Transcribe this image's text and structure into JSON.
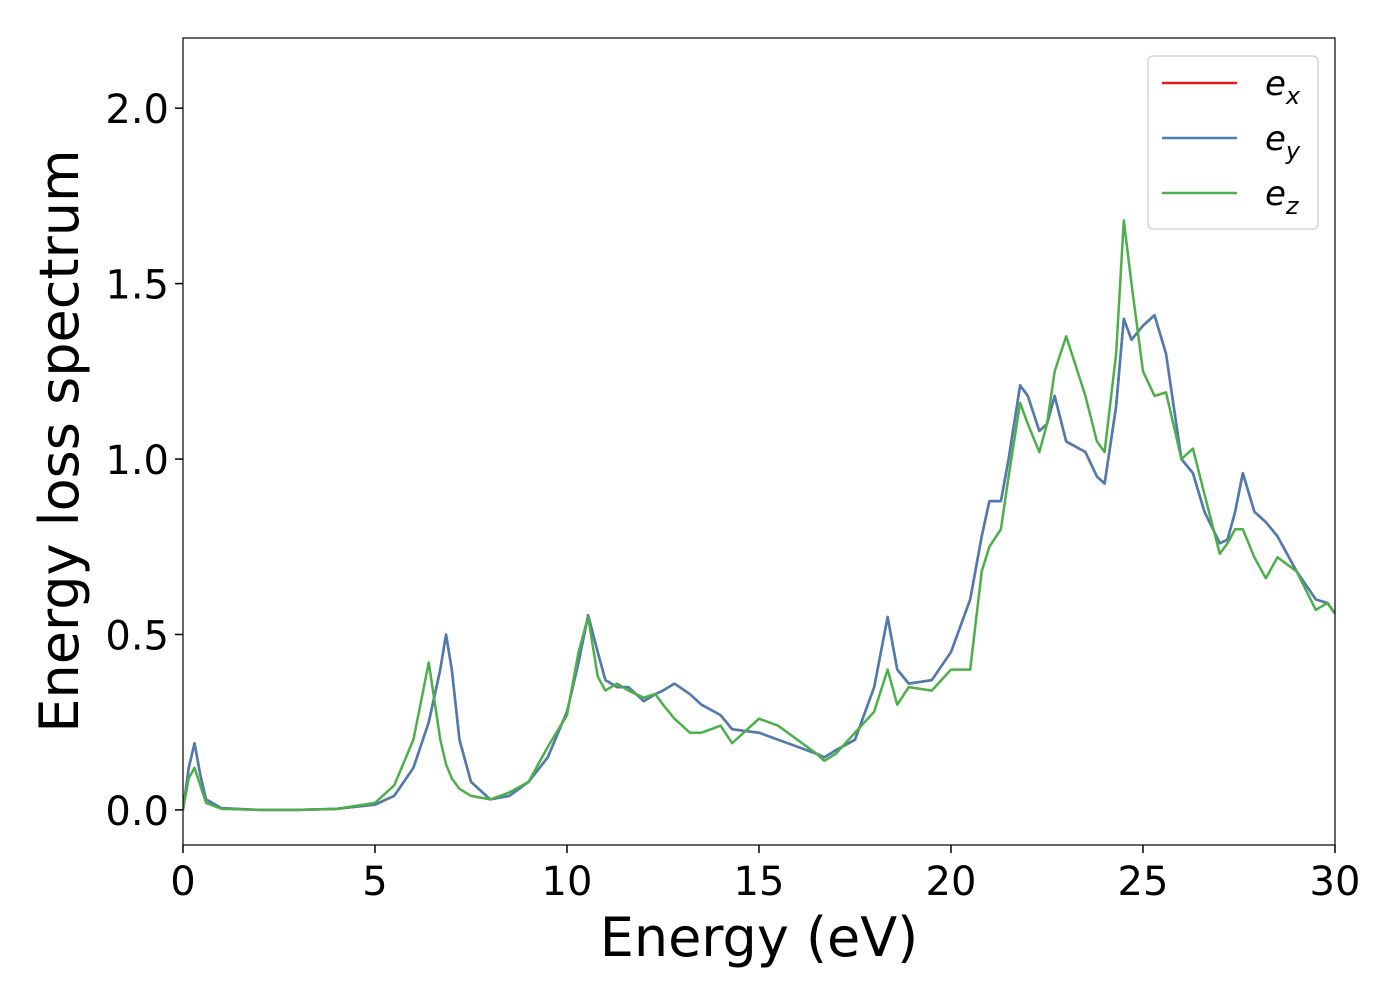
{
  "chart_data": {
    "type": "line",
    "xlabel": "Energy (eV)",
    "ylabel": "Energy loss spectrum",
    "xlim": [
      0,
      30
    ],
    "ylim": [
      -0.1,
      2.2
    ],
    "xticks": [
      0,
      5,
      10,
      15,
      20,
      25,
      30
    ],
    "yticks": [
      {
        "value": 0,
        "label": "0.0"
      },
      0.5,
      {
        "value": 1,
        "label": "1.0"
      },
      1.5,
      {
        "value": 2,
        "label": "2.0"
      }
    ],
    "legend": "upper right",
    "x": [
      0,
      0.15,
      0.3,
      0.45,
      0.6,
      1,
      2,
      3,
      4,
      5,
      5.5,
      6,
      6.4,
      6.7,
      6.85,
      7.0,
      7.2,
      7.5,
      8,
      8.5,
      9,
      9.5,
      10,
      10.3,
      10.55,
      10.8,
      11,
      11.3,
      11.6,
      12,
      12.3,
      12.5,
      12.8,
      13.2,
      13.5,
      14,
      14.3,
      15,
      15.5,
      16,
      16.5,
      16.7,
      17,
      17.5,
      18,
      18.35,
      18.6,
      18.9,
      19.5,
      20,
      20.5,
      20.8,
      21,
      21.3,
      21.5,
      21.8,
      22,
      22.3,
      22.5,
      22.7,
      23,
      23.5,
      23.8,
      24,
      24.3,
      24.5,
      24.7,
      25,
      25.3,
      25.6,
      26,
      26.3,
      26.6,
      27,
      27.2,
      27.4,
      27.6,
      27.9,
      28.2,
      28.5,
      29,
      29.5,
      29.8,
      30
    ],
    "series": [
      {
        "name": "e_x",
        "color": "#e41a1c",
        "values": [
          0,
          0.12,
          0.19,
          0.1,
          0.03,
          0.005,
          0,
          0,
          0.003,
          0.015,
          0.04,
          0.12,
          0.25,
          0.4,
          0.5,
          0.4,
          0.2,
          0.08,
          0.03,
          0.04,
          0.08,
          0.15,
          0.28,
          0.42,
          0.555,
          0.45,
          0.37,
          0.35,
          0.35,
          0.31,
          0.33,
          0.34,
          0.36,
          0.33,
          0.3,
          0.27,
          0.23,
          0.22,
          0.2,
          0.18,
          0.16,
          0.15,
          0.17,
          0.2,
          0.35,
          0.55,
          0.4,
          0.36,
          0.37,
          0.45,
          0.6,
          0.78,
          0.88,
          0.88,
          1.0,
          1.21,
          1.18,
          1.08,
          1.1,
          1.18,
          1.05,
          1.02,
          0.95,
          0.93,
          1.15,
          1.4,
          1.34,
          1.38,
          1.41,
          1.3,
          1.0,
          0.96,
          0.85,
          0.76,
          0.77,
          0.85,
          0.96,
          0.85,
          0.82,
          0.78,
          0.68,
          0.6,
          0.59,
          0.56
        ]
      },
      {
        "name": "e_y",
        "color": "#4a7eb3",
        "values": [
          0,
          0.12,
          0.19,
          0.1,
          0.03,
          0.005,
          0,
          0,
          0.003,
          0.015,
          0.04,
          0.12,
          0.25,
          0.4,
          0.5,
          0.4,
          0.2,
          0.08,
          0.03,
          0.04,
          0.08,
          0.15,
          0.28,
          0.42,
          0.555,
          0.45,
          0.37,
          0.35,
          0.35,
          0.31,
          0.33,
          0.34,
          0.36,
          0.33,
          0.3,
          0.27,
          0.23,
          0.22,
          0.2,
          0.18,
          0.16,
          0.15,
          0.17,
          0.2,
          0.35,
          0.55,
          0.4,
          0.36,
          0.37,
          0.45,
          0.6,
          0.78,
          0.88,
          0.88,
          1.0,
          1.21,
          1.18,
          1.08,
          1.1,
          1.18,
          1.05,
          1.02,
          0.95,
          0.93,
          1.15,
          1.4,
          1.34,
          1.38,
          1.41,
          1.3,
          1.0,
          0.96,
          0.85,
          0.76,
          0.77,
          0.85,
          0.96,
          0.85,
          0.82,
          0.78,
          0.68,
          0.6,
          0.59,
          0.56
        ]
      },
      {
        "name": "e_z",
        "color": "#4daf4a",
        "values": [
          0,
          0.09,
          0.12,
          0.07,
          0.02,
          0.003,
          0,
          0,
          0.003,
          0.02,
          0.07,
          0.2,
          0.42,
          0.2,
          0.13,
          0.09,
          0.06,
          0.04,
          0.03,
          0.05,
          0.08,
          0.18,
          0.27,
          0.45,
          0.55,
          0.38,
          0.34,
          0.36,
          0.34,
          0.32,
          0.33,
          0.3,
          0.26,
          0.22,
          0.22,
          0.24,
          0.19,
          0.26,
          0.24,
          0.2,
          0.16,
          0.14,
          0.16,
          0.22,
          0.28,
          0.4,
          0.3,
          0.35,
          0.34,
          0.4,
          0.4,
          0.68,
          0.75,
          0.8,
          0.95,
          1.16,
          1.1,
          1.02,
          1.1,
          1.25,
          1.35,
          1.18,
          1.05,
          1.02,
          1.3,
          1.68,
          1.5,
          1.25,
          1.18,
          1.19,
          1.0,
          1.03,
          0.9,
          0.73,
          0.76,
          0.8,
          0.8,
          0.72,
          0.66,
          0.72,
          0.68,
          0.57,
          0.59,
          0.56
        ]
      }
    ]
  }
}
